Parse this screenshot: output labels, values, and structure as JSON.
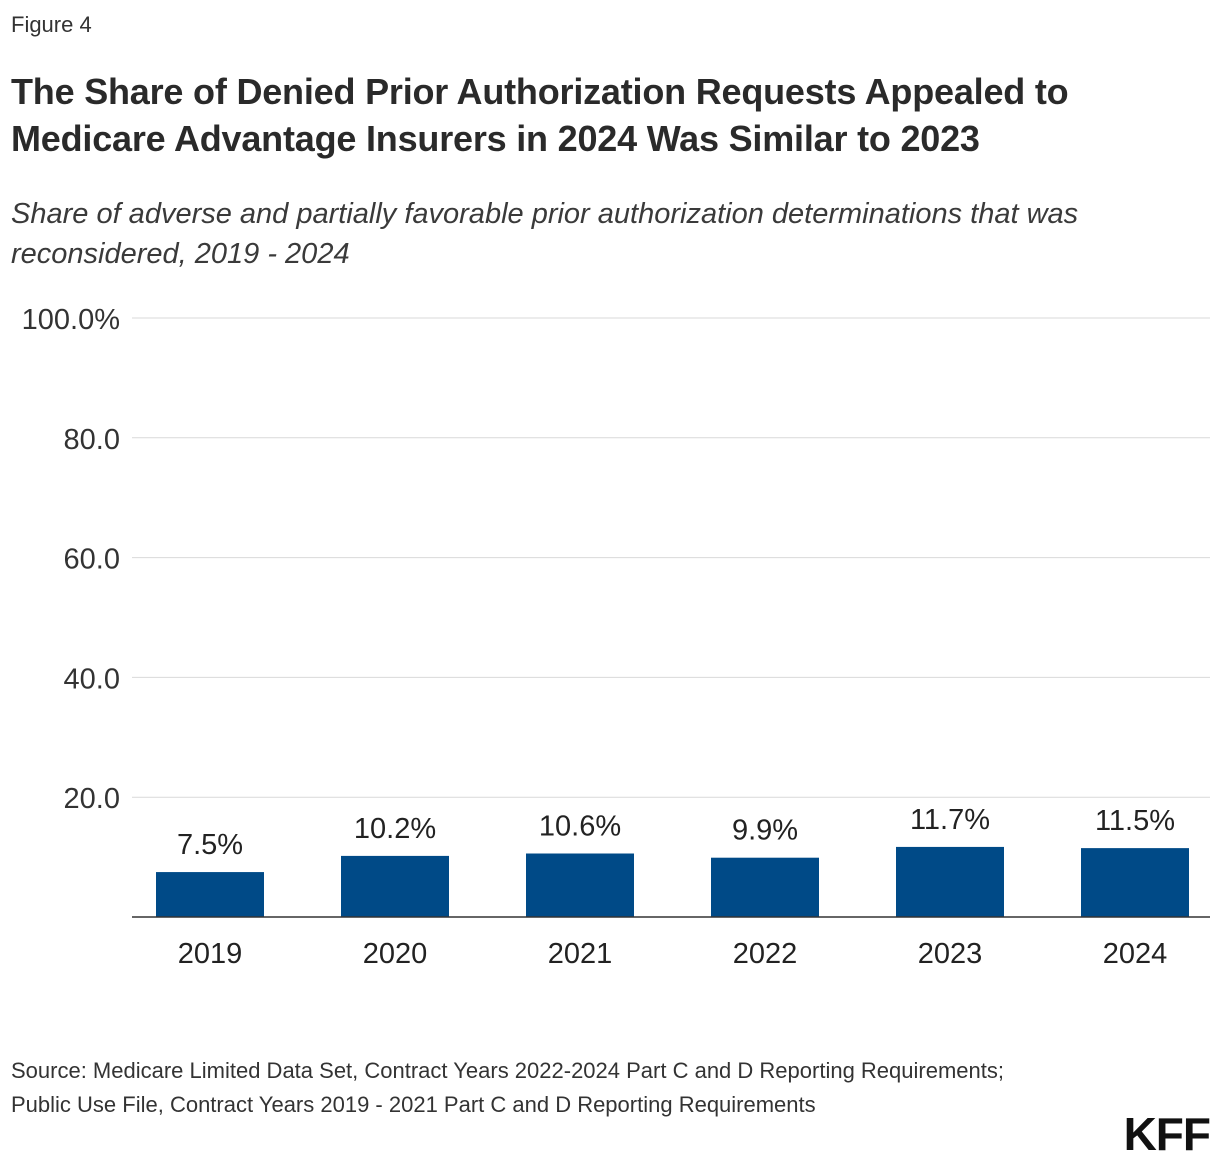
{
  "figure_label": "Figure 4",
  "source": "Source: Medicare Limited Data Set, Contract Years 2022-2024 Part C and D Reporting Requirements; Public Use File, Contract Years 2019 - 2021 Part C and D Reporting Requirements",
  "logo": "KFF",
  "chart_data": {
    "type": "bar",
    "title": "The Share of Denied Prior Authorization Requests Appealed to Medicare Advantage Insurers in 2024 Was Similar to 2023",
    "subtitle": "Share of adverse and partially favorable prior authorization determinations that was reconsidered, 2019 - 2024",
    "xlabel": "",
    "ylabel": "",
    "categories": [
      "2019",
      "2020",
      "2021",
      "2022",
      "2023",
      "2024"
    ],
    "values": [
      7.5,
      10.2,
      10.6,
      9.9,
      11.7,
      11.5
    ],
    "data_labels": [
      "7.5%",
      "10.2%",
      "10.6%",
      "9.9%",
      "11.7%",
      "11.5%"
    ],
    "ylim": [
      0,
      100
    ],
    "y_ticks": [
      20,
      40,
      60,
      80,
      100
    ],
    "y_tick_labels": [
      "20.0",
      "40.0",
      "60.0",
      "80.0",
      "100.0%"
    ],
    "grid": true,
    "bar_color": "#004a87"
  }
}
